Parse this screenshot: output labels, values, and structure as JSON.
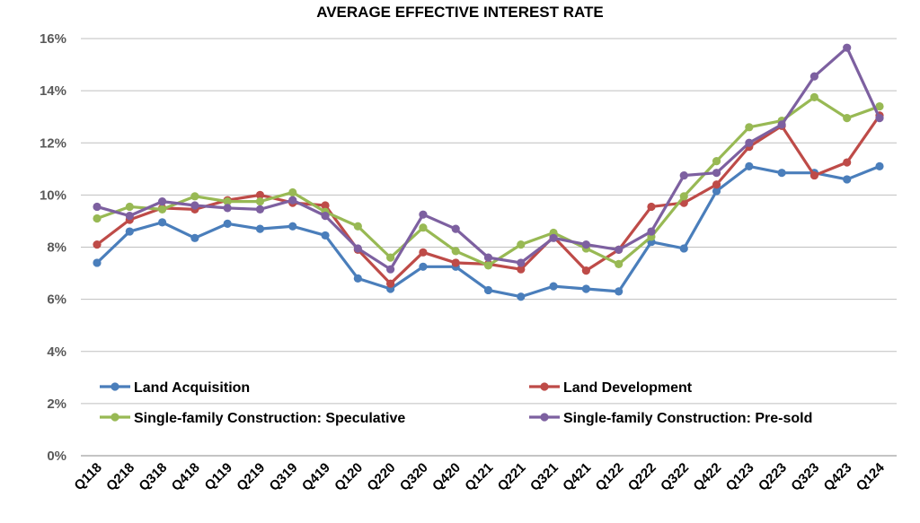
{
  "chart_data": {
    "type": "line",
    "title": "AVERAGE EFFECTIVE INTEREST RATE",
    "xlabel": "",
    "ylabel": "",
    "ylim": [
      0,
      16
    ],
    "yticks": [
      "0%",
      "2%",
      "4%",
      "6%",
      "8%",
      "10%",
      "12%",
      "14%",
      "16%"
    ],
    "grid": "horizontal",
    "legend": "inside-bottom",
    "categories": [
      "Q118",
      "Q218",
      "Q318",
      "Q418",
      "Q119",
      "Q219",
      "Q319",
      "Q419",
      "Q120",
      "Q220",
      "Q320",
      "Q420",
      "Q121",
      "Q221",
      "Q321",
      "Q421",
      "Q122",
      "Q222",
      "Q322",
      "Q422",
      "Q123",
      "Q223",
      "Q323",
      "Q423",
      "Q124"
    ],
    "series": [
      {
        "name": "Land Acquisition",
        "color": "#4a7ebb",
        "values": [
          7.4,
          8.6,
          8.95,
          8.35,
          8.9,
          8.7,
          8.8,
          8.45,
          6.8,
          6.4,
          7.25,
          7.25,
          6.35,
          6.1,
          6.5,
          6.4,
          6.3,
          8.2,
          7.95,
          10.15,
          11.1,
          10.85,
          10.85,
          10.6,
          11.1
        ]
      },
      {
        "name": "Land Development",
        "color": "#be4b48",
        "values": [
          8.1,
          9.05,
          9.5,
          9.45,
          9.8,
          10.0,
          9.7,
          9.6,
          7.9,
          6.6,
          7.8,
          7.4,
          7.35,
          7.15,
          8.4,
          7.1,
          7.9,
          9.55,
          9.7,
          10.4,
          11.85,
          12.65,
          10.75,
          11.25,
          13.05
        ]
      },
      {
        "name": "Single-family Construction: Speculative",
        "color": "#98b954",
        "values": [
          9.1,
          9.55,
          9.45,
          9.95,
          9.75,
          9.75,
          10.1,
          9.35,
          8.8,
          7.6,
          8.75,
          7.85,
          7.3,
          8.1,
          8.55,
          7.95,
          7.35,
          8.4,
          9.95,
          11.3,
          12.6,
          12.85,
          13.75,
          12.95,
          13.4
        ]
      },
      {
        "name": "Single-family Construction: Pre-sold",
        "color": "#7d60a0",
        "values": [
          9.55,
          9.2,
          9.75,
          9.6,
          9.5,
          9.45,
          9.8,
          9.2,
          7.95,
          7.15,
          9.25,
          8.7,
          7.6,
          7.4,
          8.35,
          8.1,
          7.9,
          8.6,
          10.75,
          10.85,
          12.0,
          12.7,
          14.55,
          15.65,
          12.95
        ]
      }
    ]
  }
}
